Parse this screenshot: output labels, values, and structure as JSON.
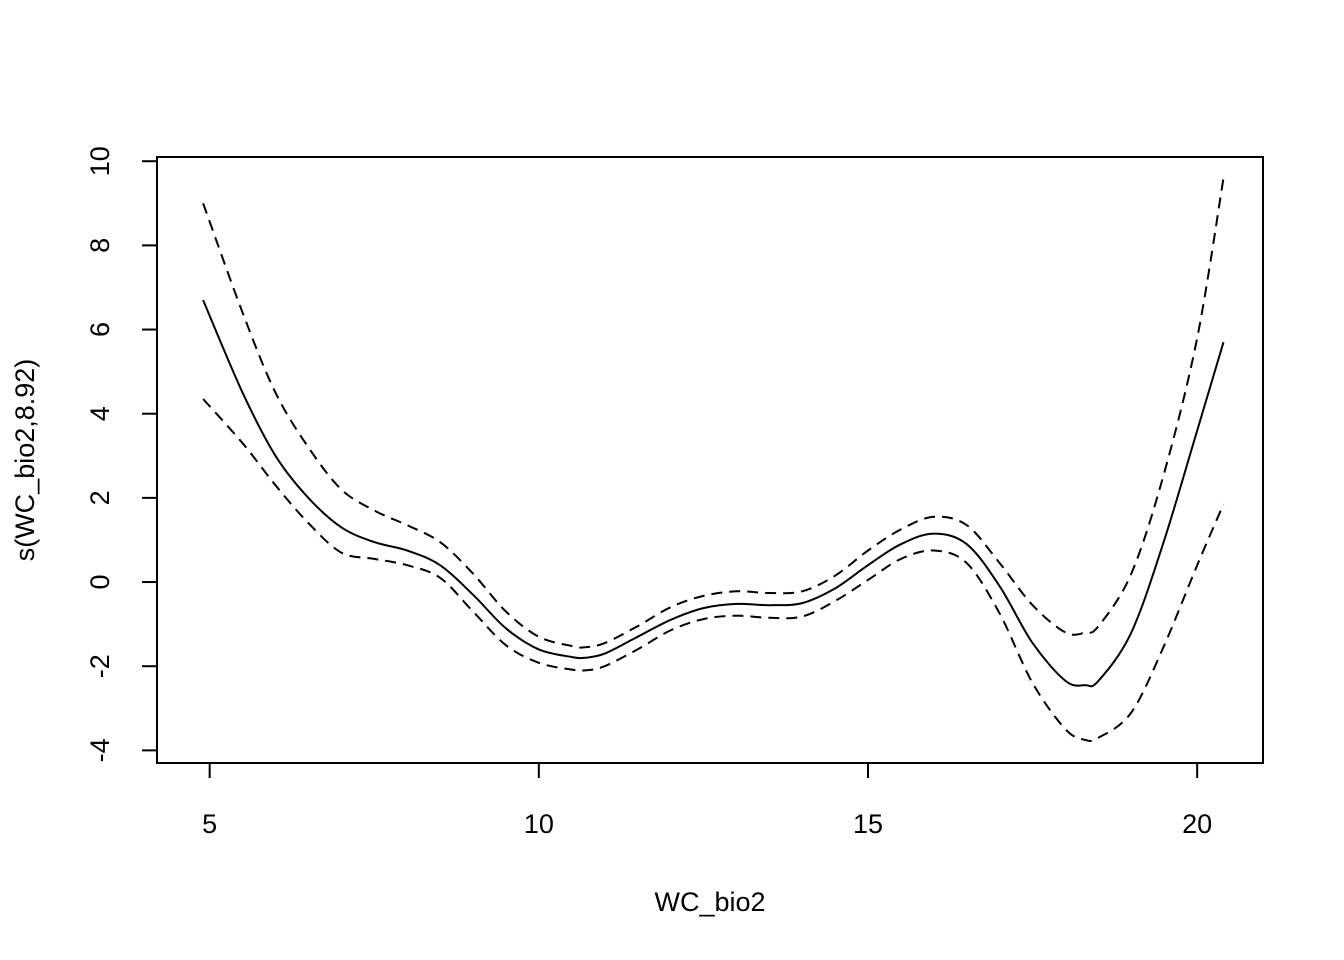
{
  "chart_data": {
    "type": "line",
    "title": "",
    "xlabel": "WC_bio2",
    "ylabel": "s(WC_bio2,8.92)",
    "xlim": [
      4.2,
      21.0
    ],
    "ylim": [
      -4.3,
      10.1
    ],
    "x_ticks": [
      5,
      10,
      15,
      20
    ],
    "y_ticks": [
      -4,
      -2,
      0,
      2,
      4,
      6,
      8,
      10
    ],
    "x_tick_labels": [
      "5",
      "10",
      "15",
      "20"
    ],
    "y_tick_labels": [
      "-4",
      "-2",
      "0",
      "2",
      "4",
      "6",
      "8",
      "10"
    ],
    "grid": false,
    "legend": "none",
    "series": [
      {
        "name": "fit",
        "style": "solid",
        "color": "#000000",
        "x": [
          4.9,
          5.5,
          6.0,
          6.5,
          7.0,
          7.5,
          8.0,
          8.5,
          9.0,
          9.5,
          10.0,
          10.5,
          10.7,
          11.0,
          11.5,
          12.0,
          12.5,
          13.0,
          13.5,
          14.0,
          14.5,
          15.0,
          15.5,
          16.0,
          16.5,
          17.0,
          17.5,
          18.0,
          18.3,
          18.5,
          19.0,
          19.5,
          20.0,
          20.4
        ],
        "y": [
          6.7,
          4.5,
          3.0,
          2.0,
          1.3,
          0.95,
          0.75,
          0.4,
          -0.3,
          -1.1,
          -1.6,
          -1.78,
          -1.8,
          -1.7,
          -1.3,
          -0.9,
          -0.62,
          -0.52,
          -0.55,
          -0.5,
          -0.15,
          0.4,
          0.9,
          1.15,
          0.9,
          -0.1,
          -1.45,
          -2.35,
          -2.45,
          -2.35,
          -1.2,
          1.0,
          3.6,
          5.7
        ]
      },
      {
        "name": "upper-se",
        "style": "dashed",
        "color": "#000000",
        "x": [
          4.9,
          5.5,
          6.0,
          6.5,
          7.0,
          7.5,
          8.0,
          8.5,
          9.0,
          9.5,
          10.0,
          10.5,
          10.7,
          11.0,
          11.5,
          12.0,
          12.5,
          13.0,
          13.5,
          14.0,
          14.5,
          15.0,
          15.5,
          16.0,
          16.5,
          17.0,
          17.5,
          18.0,
          18.3,
          18.5,
          19.0,
          19.5,
          20.0,
          20.4
        ],
        "y": [
          9.0,
          6.4,
          4.5,
          3.2,
          2.2,
          1.7,
          1.35,
          0.95,
          0.2,
          -0.7,
          -1.3,
          -1.52,
          -1.55,
          -1.45,
          -1.05,
          -0.6,
          -0.33,
          -0.22,
          -0.26,
          -0.22,
          0.15,
          0.75,
          1.25,
          1.55,
          1.35,
          0.45,
          -0.55,
          -1.2,
          -1.2,
          -1.05,
          0.2,
          2.6,
          5.8,
          9.6
        ]
      },
      {
        "name": "lower-se",
        "style": "dashed",
        "color": "#000000",
        "x": [
          4.9,
          5.5,
          6.0,
          6.5,
          7.0,
          7.5,
          8.0,
          8.5,
          9.0,
          9.5,
          10.0,
          10.5,
          10.7,
          11.0,
          11.5,
          12.0,
          12.5,
          13.0,
          13.5,
          14.0,
          14.5,
          15.0,
          15.5,
          16.0,
          16.5,
          17.0,
          17.5,
          18.0,
          18.3,
          18.5,
          19.0,
          19.5,
          20.0,
          20.4
        ],
        "y": [
          4.35,
          3.3,
          2.3,
          1.4,
          0.7,
          0.55,
          0.4,
          0.1,
          -0.7,
          -1.5,
          -1.92,
          -2.08,
          -2.1,
          -2.0,
          -1.6,
          -1.15,
          -0.88,
          -0.8,
          -0.85,
          -0.82,
          -0.45,
          0.05,
          0.55,
          0.75,
          0.45,
          -0.75,
          -2.4,
          -3.5,
          -3.75,
          -3.7,
          -3.1,
          -1.5,
          0.4,
          1.85
        ]
      }
    ]
  }
}
